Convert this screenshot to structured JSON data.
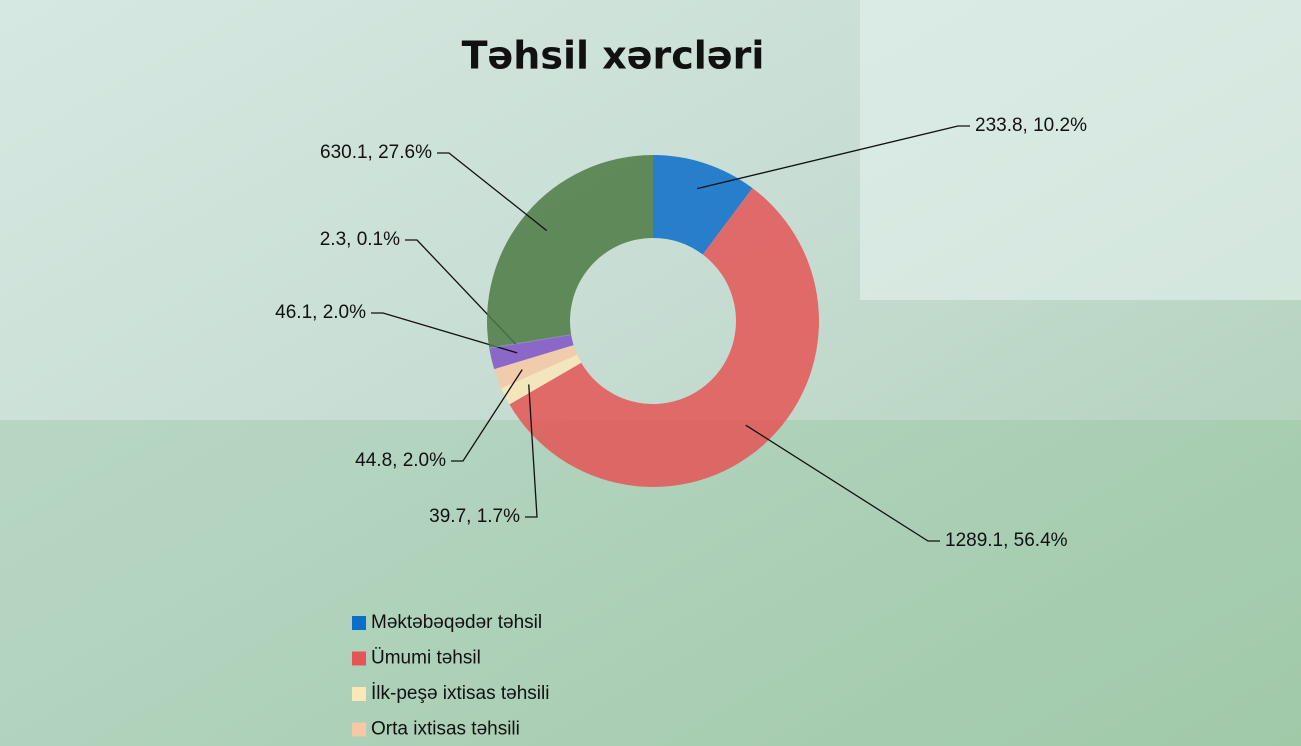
{
  "chart_data": {
    "type": "donut",
    "title": "Təhsil xərcləri",
    "categories": [
      "Məktəbəqədər təhsil",
      "Ümumi təhsil",
      "İlk-peşə ixtisas təhsili",
      "Orta ixtisas təhsili",
      null,
      null,
      null
    ],
    "values": [
      233.8,
      1289.1,
      39.7,
      44.8,
      46.1,
      2.3,
      630.1
    ],
    "value_labels": [
      "233.8, 10.2%",
      "1289.1, 56.4%",
      "39.7, 1.7%",
      "44.8, 2.0%",
      "46.1, 2.0%",
      "2.3, 0.1%",
      "630.1, 27.6%"
    ],
    "colors": [
      "#0a6fc9",
      "#e45656",
      "#fbe8b8",
      "#f7c8a4",
      "#8052c4",
      "#6f7fb8",
      "#4e7a44"
    ]
  }
}
